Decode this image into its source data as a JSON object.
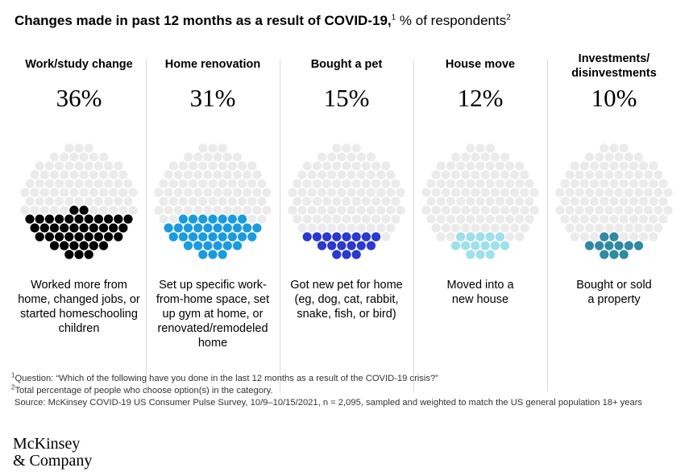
{
  "title": {
    "main": "Changes made in past 12 months as a result of COVID-19,",
    "main_sup": "1",
    "subtitle": "% of respondents",
    "subtitle_sup": "2"
  },
  "chart_data": {
    "type": "dot-proportion",
    "series": [
      {
        "category": "Work/study change",
        "value": 36,
        "label": "36%",
        "description": "Worked more from home, changed jobs, or started homeschooling children",
        "color": "#000000"
      },
      {
        "category": "Home renovation",
        "value": 31,
        "label": "31%",
        "description": "Set up specific work-from-home space, set up gym at home, or renovated/remodeled home",
        "color": "#1a9be0"
      },
      {
        "category": "Bought a pet",
        "value": 15,
        "label": "15%",
        "description": "Got new pet for home (eg, dog, cat, rabbit, snake, fish, or bird)",
        "color": "#2a39cf"
      },
      {
        "category": "House move",
        "value": 12,
        "label": "12%",
        "description": "Moved into a new house",
        "color": "#9fe0ea"
      },
      {
        "category": "Investments/ disinvestments",
        "value": 10,
        "label": "10%",
        "description": "Bought or sold a property",
        "color": "#2f8aa1"
      }
    ],
    "empty_dot_color": "#ebebeb"
  },
  "panels": [
    {
      "category_lines": [
        "Work/study change"
      ],
      "label": "36%",
      "desc_lines": [
        "Worked more from",
        "home, changed jobs, or",
        "started homeschooling",
        "children"
      ]
    },
    {
      "category_lines": [
        "Home renovation"
      ],
      "label": "31%",
      "desc_lines": [
        "Set up specific work-",
        "from-home space, set",
        "up gym at home, or",
        "renovated/remodeled",
        "home"
      ]
    },
    {
      "category_lines": [
        "Bought a pet"
      ],
      "label": "15%",
      "desc_lines": [
        "Got new pet for home",
        "(eg, dog, cat, rabbit,",
        "snake, fish, or bird)"
      ]
    },
    {
      "category_lines": [
        "House move"
      ],
      "label": "12%",
      "desc_lines": [
        "Moved into a",
        "new house"
      ]
    },
    {
      "category_lines": [
        "Investments/",
        "disinvestments"
      ],
      "label": "10%",
      "desc_lines": [
        "Bought or sold",
        "a property"
      ]
    }
  ],
  "footnotes": [
    {
      "sup": "1",
      "text": "Question: “Which of the following have you done in the last 12 months as a result of the COVID-19 crisis?”"
    },
    {
      "sup": "2",
      "text": "Total percentage of people who choose option(s) in the category."
    },
    {
      "sup": "",
      "text": "Source: McKinsey COVID-19 US Consumer Pulse Survey, 10/9–10/15/2021, n = 2,095, sampled and weighted to match the US general population 18+ years"
    }
  ],
  "logo": {
    "line1": "McKinsey",
    "line2": "& Company"
  }
}
